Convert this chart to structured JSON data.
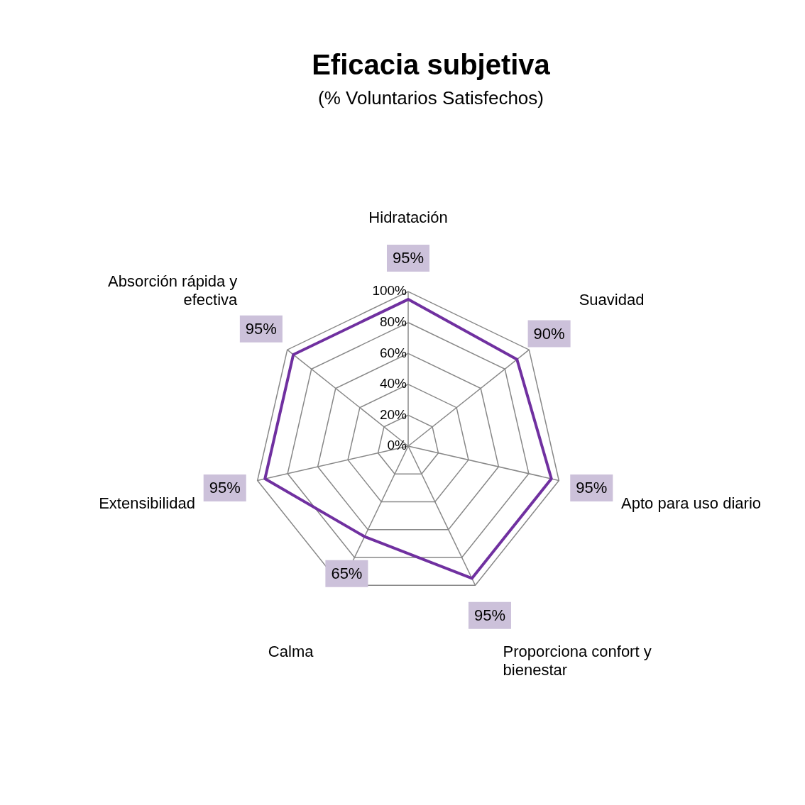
{
  "chart_data": {
    "type": "radar",
    "title": "Eficacia subjetiva",
    "subtitle": "(% Voluntarios Satisfechos)",
    "categories": [
      "Hidratación",
      "Suavidad",
      "Apto para uso diario",
      "Proporciona confort y bienestar",
      "Calma",
      "Extensibilidad",
      "Absorción rápida y efectiva"
    ],
    "series": [
      {
        "color": "#7030a0",
        "values": [
          95,
          90,
          95,
          95,
          65,
          95,
          95
        ],
        "value_labels": [
          "95%",
          "90%",
          "95%",
          "95%",
          "65%",
          "95%",
          "95%"
        ]
      }
    ],
    "ylim": [
      0,
      100
    ],
    "yticks": [
      {
        "value": 0,
        "label": "0%"
      },
      {
        "value": 20,
        "label": "20%"
      },
      {
        "value": 40,
        "label": "40%"
      },
      {
        "value": 60,
        "label": "60%"
      },
      {
        "value": 80,
        "label": "80%"
      },
      {
        "value": 100,
        "label": "100%"
      }
    ],
    "grid": true,
    "legend": false,
    "marker": "none"
  }
}
